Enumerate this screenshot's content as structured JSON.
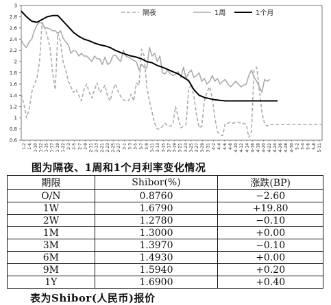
{
  "chart_data": {
    "type": "line",
    "title": "",
    "xlabel": "",
    "ylabel": "",
    "ylim": [
      0.6,
      3.0
    ],
    "yticks": [
      "0.6",
      "0.8",
      "1",
      "1.2",
      "1.4",
      "1.6",
      "1.8",
      "2",
      "2.2",
      "2.4",
      "2.6",
      "2.8",
      "3"
    ],
    "xticks": [
      "1-2",
      "1-6",
      "1-10",
      "1-12",
      "1-15",
      "1-17",
      "1-19",
      "1-22",
      "2-3",
      "2-5",
      "2-7",
      "2-9",
      "2-11",
      "2-13",
      "2-21",
      "2-23",
      "2-25",
      "2-27",
      "3-1",
      "3-3",
      "3-5",
      "3-7",
      "3-9",
      "3-11",
      "3-13",
      "3-15",
      "3-17",
      "3-19",
      "3-21",
      "3-23",
      "3-25",
      "3-27",
      "3-29",
      "3-31",
      "4-2",
      "4-4",
      "4-6",
      "4-8",
      "4-10",
      "4-12",
      "4-14",
      "4-16",
      "4-18",
      "4-20",
      "4-22",
      "4-24",
      "4-26",
      "4-28",
      "4-30",
      "5-2",
      "5-4",
      "5-6",
      "5-8",
      "5-11"
    ],
    "legend": {
      "position": "top",
      "items": [
        "隔夜",
        "1周",
        "1个月"
      ]
    },
    "grid": false,
    "series": [
      {
        "name": "隔夜",
        "style": "dashed",
        "color": "#aaaaaa",
        "x": [
          0,
          2,
          4,
          6,
          8,
          10,
          12,
          14,
          16,
          18,
          20,
          22,
          24,
          26,
          28,
          30,
          32,
          34,
          36,
          38,
          40,
          42,
          44,
          46,
          48,
          50,
          52,
          54,
          56,
          58,
          60,
          62,
          64,
          66,
          68,
          70,
          72,
          74,
          76,
          78,
          80,
          82,
          84,
          86,
          88,
          90,
          92,
          94,
          96,
          98,
          100,
          102,
          104,
          106,
          108,
          110,
          112,
          114,
          116,
          118,
          120,
          122,
          124,
          126,
          128,
          130,
          132,
          134,
          136,
          138,
          140,
          142,
          144,
          146,
          148,
          150,
          152,
          154,
          156,
          158,
          160,
          162,
          164,
          166,
          168,
          170,
          172,
          174,
          176,
          178,
          180,
          182,
          184,
          186,
          188,
          190,
          192,
          194,
          196,
          198,
          200,
          202,
          204,
          206,
          208,
          210,
          212,
          214,
          216,
          218,
          220,
          222,
          224,
          226,
          228,
          230
        ],
        "values": [
          1.42,
          1.25,
          1.0,
          1.15,
          1.45,
          1.6,
          1.7,
          2.0,
          2.7,
          2.6,
          2.45,
          2.25,
          1.8,
          1.5,
          2.5,
          2.35,
          2.0,
          1.85,
          1.65,
          1.55,
          1.45,
          1.5,
          1.4,
          1.3,
          1.5,
          1.6,
          1.45,
          1.35,
          1.5,
          1.62,
          1.45,
          1.5,
          1.58,
          1.38,
          1.3,
          1.5,
          1.6,
          1.48,
          1.38,
          1.32,
          1.3,
          1.3,
          1.42,
          1.3,
          1.62,
          1.58,
          2.22,
          2.1,
          1.55,
          1.3,
          1.1,
          0.9,
          0.8,
          0.8,
          0.85,
          0.9,
          0.85,
          0.85,
          0.9,
          1.2,
          1.0,
          0.82,
          0.85,
          0.88,
          1.5,
          1.6,
          1.38,
          1.05,
          0.82,
          0.85,
          1.3,
          1.45,
          1.55,
          1.35,
          1.0,
          0.75,
          0.7,
          0.68,
          0.9,
          0.9,
          0.92,
          0.9,
          0.92,
          0.92,
          0.9,
          0.9,
          0.88,
          0.65,
          0.75,
          1.85,
          1.9,
          1.5,
          1.1,
          0.9,
          0.85,
          0.88,
          0.88,
          0.88,
          0.88,
          0.88,
          0.88,
          0.88,
          0.88,
          0.88,
          0.88,
          0.88,
          0.88,
          0.88,
          0.88,
          0.88,
          0.88,
          0.88,
          0.88,
          0.88,
          0.88,
          0.88
        ]
      },
      {
        "name": "1周",
        "style": "solid",
        "color": "#aaaaaa",
        "x": [
          0,
          2,
          4,
          6,
          8,
          10,
          12,
          14,
          16,
          18,
          20,
          22,
          24,
          26,
          28,
          30,
          32,
          34,
          36,
          38,
          40,
          42,
          44,
          46,
          48,
          50,
          52,
          54,
          56,
          58,
          60,
          62,
          64,
          66,
          68,
          70,
          72,
          74,
          76,
          78,
          80,
          82,
          84,
          86,
          88,
          90,
          92,
          94,
          96,
          98,
          100,
          102,
          104,
          106,
          108,
          110,
          112,
          114,
          116,
          118,
          120,
          122,
          124,
          126,
          128,
          130,
          132,
          134,
          136,
          138,
          140,
          142,
          144,
          146,
          148,
          150,
          152,
          154,
          156,
          158,
          160,
          162,
          164,
          166,
          168,
          170,
          172,
          174,
          176,
          178,
          180,
          182,
          184,
          186,
          188,
          190
        ],
        "values": [
          2.38,
          2.3,
          2.25,
          2.35,
          2.4,
          2.55,
          2.65,
          2.7,
          2.68,
          2.6,
          2.6,
          2.58,
          2.55,
          2.55,
          2.5,
          2.55,
          2.42,
          2.35,
          2.3,
          2.15,
          2.2,
          2.18,
          2.1,
          2.15,
          2.1,
          2.1,
          2.05,
          2.0,
          2.1,
          2.05,
          2.05,
          1.95,
          2.08,
          1.95,
          1.98,
          2.1,
          2.12,
          2.05,
          2.0,
          2.2,
          2.1,
          2.08,
          2.05,
          2.02,
          2.0,
          1.85,
          1.95,
          1.9,
          1.88,
          2.25,
          2.1,
          2.15,
          2.0,
          2.1,
          1.8,
          1.78,
          1.85,
          1.78,
          1.75,
          1.78,
          1.82,
          1.72,
          1.9,
          1.7,
          1.8,
          1.85,
          1.72,
          1.75,
          1.8,
          1.65,
          1.7,
          1.6,
          1.65,
          1.75,
          1.65,
          1.7,
          1.6,
          1.65,
          1.68,
          1.6,
          1.55,
          1.6,
          1.65,
          1.6,
          1.55,
          1.58,
          1.6,
          1.75,
          1.85,
          1.72,
          1.65,
          1.55,
          1.45,
          1.68,
          1.65,
          1.68
        ]
      },
      {
        "name": "1个月",
        "style": "solid",
        "color": "#000000",
        "x": [
          0,
          4,
          8,
          12,
          16,
          20,
          24,
          28,
          32,
          36,
          40,
          44,
          48,
          52,
          56,
          60,
          64,
          68,
          72,
          76,
          80,
          84,
          88,
          92,
          96,
          100,
          104,
          108,
          112,
          116,
          120,
          124,
          128,
          132,
          136,
          140,
          144,
          148,
          152,
          156,
          160,
          164,
          168,
          172,
          176,
          180,
          184,
          188,
          192,
          196
        ],
        "values": [
          2.9,
          2.8,
          2.72,
          2.7,
          2.75,
          2.8,
          2.82,
          2.82,
          2.72,
          2.62,
          2.52,
          2.45,
          2.4,
          2.37,
          2.33,
          2.3,
          2.28,
          2.25,
          2.2,
          2.16,
          2.13,
          2.1,
          2.08,
          2.05,
          2.0,
          1.98,
          1.93,
          1.9,
          1.86,
          1.82,
          1.78,
          1.72,
          1.66,
          1.5,
          1.4,
          1.36,
          1.34,
          1.32,
          1.31,
          1.3,
          1.3,
          1.3,
          1.3,
          1.3,
          1.3,
          1.3,
          1.3,
          1.3,
          1.3,
          1.3
        ]
      }
    ]
  },
  "figure_caption": "图为隔夜、1周和1个月利率变化情况",
  "table": {
    "headers": [
      "期限",
      "Shibor(%)",
      "涨跌(BP)"
    ],
    "rows": [
      [
        "O/N",
        "0.8760",
        "−2.60"
      ],
      [
        "1W",
        "1.6790",
        "+19.80"
      ],
      [
        "2W",
        "1.2780",
        "−0.10"
      ],
      [
        "1M",
        "1.3000",
        "+0.00"
      ],
      [
        "3M",
        "1.3970",
        "−0.10"
      ],
      [
        "6M",
        "1.4930",
        "+0.00"
      ],
      [
        "9M",
        "1.5940",
        "+0.20"
      ],
      [
        "1Y",
        "1.6900",
        "+0.40"
      ]
    ]
  },
  "table_caption": "表为Shibor(人民币)报价"
}
